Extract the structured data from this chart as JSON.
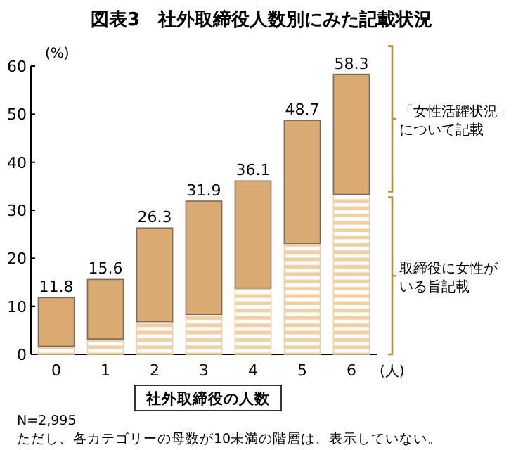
{
  "chart_data": {
    "type": "bar",
    "title": "図表3　社外取締役人数別にみた記載状況",
    "xlabel": "社外取締役の人数",
    "ylabel": "(%)",
    "categories": [
      "0",
      "1",
      "2",
      "3",
      "4",
      "5",
      "6"
    ],
    "stacked": true,
    "series": [
      {
        "name": "取締役に女性がいる旨記載",
        "color": "#f0cfa5",
        "values": [
          1.7,
          3.2,
          6.8,
          8.3,
          13.8,
          23.1,
          33.3
        ]
      },
      {
        "name": "「女性活躍状況」について記載",
        "color": "#d9aa72",
        "values": [
          10.1,
          12.4,
          19.5,
          23.6,
          22.3,
          25.6,
          25.0
        ]
      }
    ],
    "totals": [
      "11.8",
      "15.6",
      "26.3",
      "31.9",
      "36.1",
      "48.7",
      "58.3"
    ],
    "ylim": [
      0,
      60
    ],
    "yticks": [
      0,
      10,
      20,
      30,
      40,
      50,
      60
    ],
    "legend": "right",
    "grid": false,
    "annotations": [
      "(人)",
      "N=2,995",
      "ただし、各カテゴリーの母数が10未満の階層は、表示していない。"
    ]
  }
}
